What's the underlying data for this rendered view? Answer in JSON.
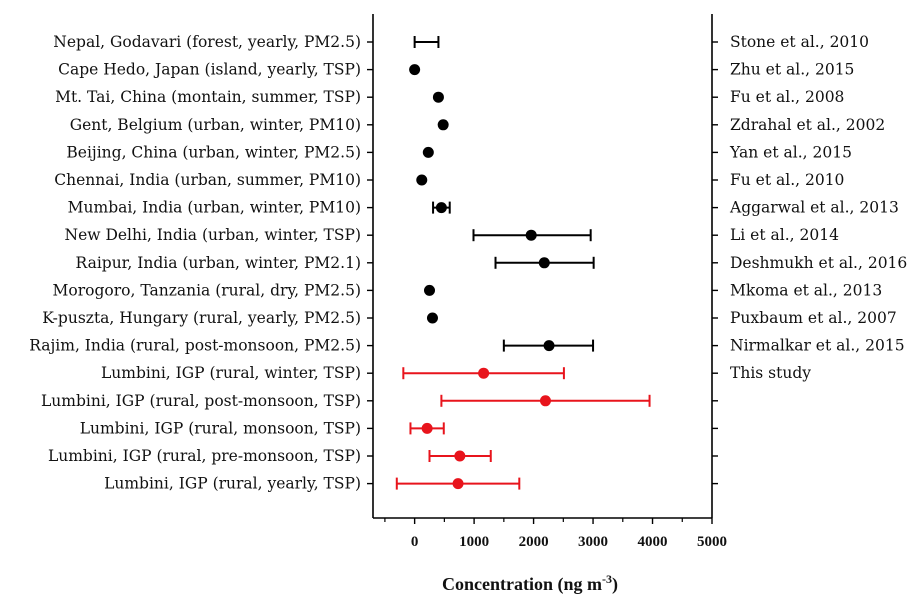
{
  "chart_data": {
    "type": "scatter",
    "orientation": "horizontal",
    "xlabel": "Concentration (ng m",
    "xlabel_superscript": "-3",
    "xlabel_suffix": ")",
    "xlim": [
      -700,
      5000
    ],
    "xticks": [
      0,
      1000,
      2000,
      3000,
      4000,
      5000
    ],
    "grid": false,
    "colors": {
      "literature": "#000000",
      "this_study": "#e8141c",
      "axis": "#000000"
    },
    "rows": [
      {
        "label": "Nepal, Godavari (forest, yearly, PM2.5)",
        "source": "Stone et al., 2010",
        "x": null,
        "xmin": 0,
        "xmax": 400,
        "group": "literature"
      },
      {
        "label": "Cape Hedo, Japan (island, yearly, TSP)",
        "source": "Zhu et al., 2015",
        "x": 0,
        "xmin": null,
        "xmax": null,
        "group": "literature"
      },
      {
        "label": "Mt. Tai, China (montain, summer, TSP)",
        "source": "Fu et al., 2008",
        "x": 400,
        "xmin": null,
        "xmax": null,
        "group": "literature"
      },
      {
        "label": "Gent, Belgium (urban, winter, PM10)",
        "source": "Zdrahal et al., 2002",
        "x": 480,
        "xmin": null,
        "xmax": null,
        "group": "literature"
      },
      {
        "label": "Beijing, China (urban, winter, PM2.5)",
        "source": "Yan et al., 2015",
        "x": 230,
        "xmin": null,
        "xmax": null,
        "group": "literature"
      },
      {
        "label": "Chennai, India (urban, summer, PM10)",
        "source": "Fu et al., 2010",
        "x": 120,
        "xmin": null,
        "xmax": null,
        "group": "literature"
      },
      {
        "label": "Mumbai, India (urban, winter, PM10)",
        "source": "Aggarwal et al., 2013",
        "x": 450,
        "xmin": 310,
        "xmax": 590,
        "group": "literature"
      },
      {
        "label": "New Delhi, India (urban, winter, TSP)",
        "source": "Li et al., 2014",
        "x": 1960,
        "xmin": 990,
        "xmax": 2960,
        "group": "literature"
      },
      {
        "label": "Raipur, India (urban, winter, PM2.1)",
        "source": "Deshmukh et al., 2016",
        "x": 2180,
        "xmin": 1360,
        "xmax": 3010,
        "group": "literature"
      },
      {
        "label": "Morogoro, Tanzania (rural, dry, PM2.5)",
        "source": "Mkoma et al., 2013",
        "x": 250,
        "xmin": null,
        "xmax": null,
        "group": "literature"
      },
      {
        "label": "K-puszta, Hungary (rural, yearly, PM2.5)",
        "source": "Puxbaum et al., 2007",
        "x": 300,
        "xmin": null,
        "xmax": null,
        "group": "literature"
      },
      {
        "label": "Rajim, India (rural, post-monsoon, PM2.5)",
        "source": "Nirmalkar et al., 2015",
        "x": 2260,
        "xmin": 1500,
        "xmax": 3000,
        "group": "literature"
      },
      {
        "label": "Lumbini, IGP (rural, winter, TSP)",
        "source": "This study",
        "x": 1160,
        "xmin": -190,
        "xmax": 2510,
        "group": "this_study"
      },
      {
        "label": "Lumbini, IGP (rural, post-monsoon, TSP)",
        "source": "",
        "x": 2200,
        "xmin": 450,
        "xmax": 3950,
        "group": "this_study"
      },
      {
        "label": "Lumbini, IGP (rural, monsoon, TSP)",
        "source": "",
        "x": 210,
        "xmin": -70,
        "xmax": 490,
        "group": "this_study"
      },
      {
        "label": "Lumbini, IGP (rural, pre-monsoon, TSP)",
        "source": "",
        "x": 760,
        "xmin": 250,
        "xmax": 1280,
        "group": "this_study"
      },
      {
        "label": "Lumbini, IGP (rural, yearly, TSP)",
        "source": "",
        "x": 730,
        "xmin": -300,
        "xmax": 1760,
        "group": "this_study"
      }
    ]
  }
}
